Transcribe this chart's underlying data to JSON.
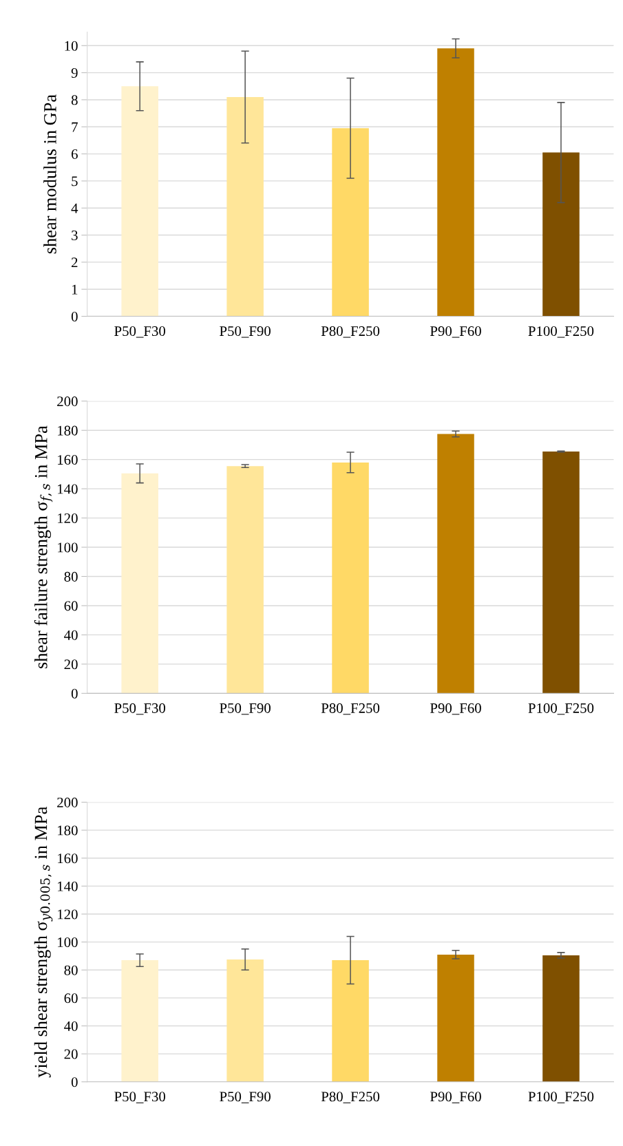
{
  "chart_data": [
    {
      "type": "bar",
      "ylabel": "shear modulus in GPa",
      "categories": [
        "P50_F30",
        "P50_F90",
        "P80_F250",
        "P90_F60",
        "P100_F250"
      ],
      "values": [
        8.5,
        8.1,
        6.95,
        9.9,
        6.05
      ],
      "errors": [
        0.9,
        1.7,
        1.85,
        0.35,
        1.85
      ],
      "colors": [
        "#fff2cc",
        "#ffe699",
        "#ffd966",
        "#bf8000",
        "#7f5000"
      ],
      "ylim": [
        0,
        10.5
      ],
      "yticks": [
        0,
        1,
        2,
        3,
        4,
        5,
        6,
        7,
        8,
        9,
        10
      ],
      "grid": "y",
      "legend": false
    },
    {
      "type": "bar",
      "ylabel": "shear failure strength σ$_{f,s}$ in MPa",
      "categories": [
        "P50_F30",
        "P50_F90",
        "P80_F250",
        "P90_F60",
        "P100_F250"
      ],
      "values": [
        150.5,
        155.5,
        158,
        177.5,
        165.5
      ],
      "errors": [
        6.5,
        1,
        7,
        2,
        0.3
      ],
      "colors": [
        "#fff2cc",
        "#ffe699",
        "#ffd966",
        "#bf8000",
        "#7f5000"
      ],
      "ylim": [
        0,
        200
      ],
      "yticks": [
        0,
        20,
        40,
        60,
        80,
        100,
        120,
        140,
        160,
        180,
        200
      ],
      "grid": "y",
      "legend": false
    },
    {
      "type": "bar",
      "ylabel": "yield shear strength σ$_{y0.005,s}$ in MPa",
      "categories": [
        "P50_F30",
        "P50_F90",
        "P80_F250",
        "P90_F60",
        "P100_F250"
      ],
      "values": [
        87,
        87.5,
        87,
        91,
        90.5
      ],
      "errors": [
        4.5,
        7.5,
        17,
        3,
        2
      ],
      "colors": [
        "#fff2cc",
        "#ffe699",
        "#ffd966",
        "#bf8000",
        "#7f5000"
      ],
      "ylim": [
        0,
        200
      ],
      "yticks": [
        0,
        20,
        40,
        60,
        80,
        100,
        120,
        140,
        160,
        180,
        200
      ],
      "grid": "y",
      "legend": false
    }
  ]
}
